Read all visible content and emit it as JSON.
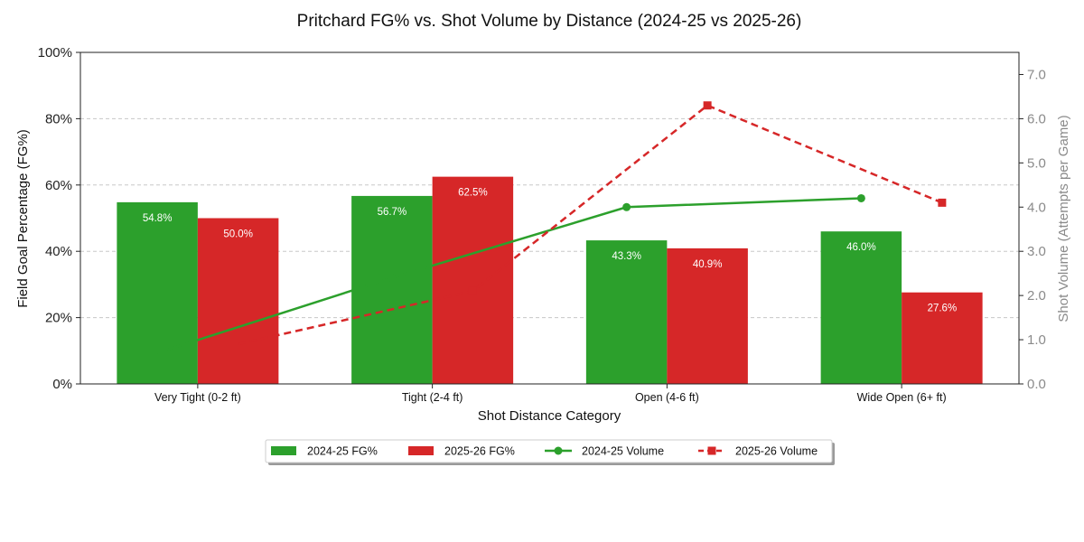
{
  "chart_data": {
    "type": "bar",
    "title": "Pritchard FG% vs. Shot Volume by Distance (2024-25 vs 2025-26)",
    "xlabel": "Shot Distance Category",
    "ylabel": "Field Goal Percentage (FG%)",
    "y2label": "Shot Volume (Attempts per Game)",
    "categories": [
      "Very Tight (0-2 ft)",
      "Tight (2-4 ft)",
      "Open (4-6 ft)",
      "Wide Open (6+ ft)"
    ],
    "ylim": [
      0,
      100
    ],
    "y2lim": [
      0,
      7.5
    ],
    "yticks": [
      0,
      20,
      40,
      60,
      80,
      100
    ],
    "ytick_labels": [
      "0%",
      "20%",
      "40%",
      "60%",
      "80%",
      "100%"
    ],
    "y2ticks": [
      0,
      1,
      2,
      3,
      4,
      5,
      6,
      7
    ],
    "y2tick_labels": [
      "0.0",
      "1.0",
      "2.0",
      "3.0",
      "4.0",
      "5.0",
      "6.0",
      "7.0"
    ],
    "grid": true,
    "legend_position": "bottom-center",
    "bar_series": [
      {
        "name": "2024-25 FG%",
        "color": "#2ca02c",
        "values": [
          54.8,
          56.7,
          43.3,
          46.0
        ],
        "labels": [
          "54.8%",
          "56.7%",
          "43.3%",
          "46.0%"
        ]
      },
      {
        "name": "2025-26 FG%",
        "color": "#d62728",
        "values": [
          50.0,
          62.5,
          40.9,
          27.6
        ],
        "labels": [
          "50.0%",
          "62.5%",
          "40.9%",
          "27.6%"
        ]
      }
    ],
    "line_series": [
      {
        "name": "2024-25 Volume",
        "color": "#2ca02c",
        "style": "solid",
        "marker": "circle",
        "values": [
          0.7,
          2.4,
          4.0,
          4.2
        ]
      },
      {
        "name": "2025-26 Volume",
        "color": "#d62728",
        "style": "dashed",
        "marker": "square",
        "values": [
          0.9,
          2.1,
          6.3,
          4.1
        ]
      }
    ]
  }
}
